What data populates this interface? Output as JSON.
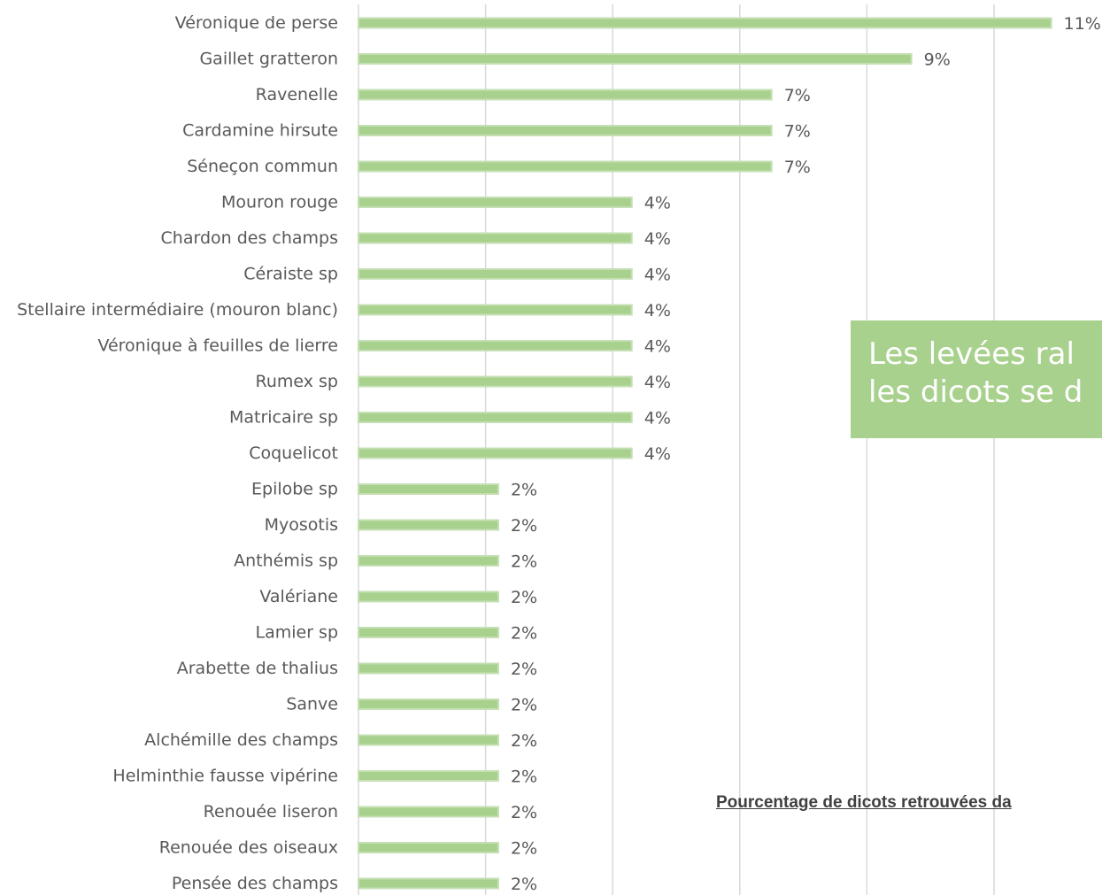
{
  "chart_data": {
    "type": "bar",
    "orientation": "horizontal",
    "categories": [
      "Véronique de perse",
      "Gaillet gratteron",
      "Ravenelle",
      "Cardamine hirsute",
      "Séneçon commun",
      "Mouron rouge",
      "Chardon des champs",
      "Céraiste sp",
      "Stellaire intermédiaire (mouron blanc)",
      "Véronique à feuilles de lierre",
      "Rumex sp",
      "Matricaire sp",
      "Coquelicot",
      "Epilobe sp",
      "Myosotis",
      "Anthémis sp",
      "Valériane",
      "Lamier sp",
      "Arabette de thalius",
      "Sanve",
      "Alchémille des champs",
      "Helminthie fausse vipérine",
      "Renouée liseron",
      "Renouée des oiseaux",
      "Pensée des champs"
    ],
    "values": [
      10.9,
      8.7,
      6.5,
      6.5,
      6.5,
      4.3,
      4.3,
      4.3,
      4.3,
      4.3,
      4.3,
      4.3,
      4.3,
      2.2,
      2.2,
      2.2,
      2.2,
      2.2,
      2.2,
      2.2,
      2.2,
      2.2,
      2.2,
      2.2,
      2.2
    ],
    "value_labels": [
      "11%",
      "9%",
      "7%",
      "7%",
      "7%",
      "4%",
      "4%",
      "4%",
      "4%",
      "4%",
      "4%",
      "4%",
      "4%",
      "2%",
      "2%",
      "2%",
      "2%",
      "2%",
      "2%",
      "2%",
      "2%",
      "2%",
      "2%",
      "2%",
      "2%"
    ],
    "xlim": [
      0,
      12
    ],
    "grid": true,
    "bar_color": "#a9d18e",
    "bar_edge_color": "#c5e0b4",
    "grid_color": "#d9d9d9"
  },
  "caption": "Pourcentage de dicots retrouvées da",
  "callout": {
    "line1": "Les levées ral",
    "line2": "les dicots se d",
    "color": "#a9d18e"
  }
}
